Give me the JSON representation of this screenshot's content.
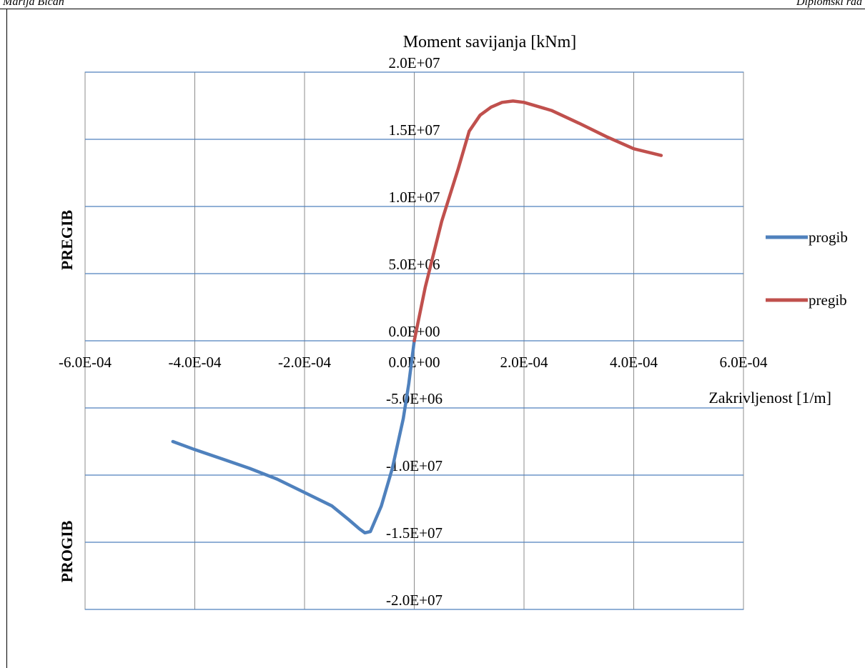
{
  "page": {
    "header_left": "Marija Bican",
    "header_right": "Diplomski rad"
  },
  "chart_data": {
    "type": "line",
    "title": "Moment savijanja [kNm]",
    "xlabel": "Zakrivljenost [1/m]",
    "ylabel_top": "PREGIB",
    "ylabel_bottom": "PROGIB",
    "xlim": [
      -0.0006,
      0.0006
    ],
    "ylim": [
      -20000000,
      20000000
    ],
    "x_ticks": [
      -0.0006,
      -0.0004,
      -0.0002,
      0,
      0.0002,
      0.0004,
      0.0006
    ],
    "x_tick_labels": [
      "-6.0E-04",
      "-4.0E-04",
      "-2.0E-04",
      "0.0E+00",
      "2.0E-04",
      "4.0E-04",
      "6.0E-04"
    ],
    "y_ticks": [
      20000000,
      15000000,
      10000000,
      5000000,
      0,
      -5000000,
      -10000000,
      -15000000,
      -20000000
    ],
    "y_tick_labels": [
      "2.0E+07",
      "1.5E+07",
      "1.0E+07",
      "5.0E+06",
      "0.0E+00",
      "-5.0E+06",
      "-1.0E+07",
      "-1.5E+07",
      "-2.0E+07"
    ],
    "grid": true,
    "legend_position": "right",
    "series": [
      {
        "name": "progib",
        "color": "#4f81bd",
        "points": [
          [
            0,
            0
          ],
          [
            -1e-05,
            -3200000
          ],
          [
            -2e-05,
            -5800000
          ],
          [
            -4e-05,
            -9500000
          ],
          [
            -6e-05,
            -12300000
          ],
          [
            -8e-05,
            -14200000
          ],
          [
            -9e-05,
            -14300000
          ],
          [
            -0.0001,
            -14000000
          ],
          [
            -0.00012,
            -13300000
          ],
          [
            -0.00015,
            -12300000
          ],
          [
            -0.0002,
            -11300000
          ],
          [
            -0.00025,
            -10300000
          ],
          [
            -0.0003,
            -9500000
          ],
          [
            -0.00035,
            -8800000
          ],
          [
            -0.0004,
            -8100000
          ],
          [
            -0.00044,
            -7500000
          ]
        ]
      },
      {
        "name": "pregib",
        "color": "#c0504d",
        "points": [
          [
            0,
            0
          ],
          [
            2e-05,
            4000000
          ],
          [
            5e-05,
            8900000
          ],
          [
            8e-05,
            12800000
          ],
          [
            0.0001,
            15600000
          ],
          [
            0.00012,
            16800000
          ],
          [
            0.00014,
            17400000
          ],
          [
            0.00016,
            17750000
          ],
          [
            0.00018,
            17850000
          ],
          [
            0.0002,
            17750000
          ],
          [
            0.00025,
            17150000
          ],
          [
            0.0003,
            16200000
          ],
          [
            0.00035,
            15200000
          ],
          [
            0.0004,
            14300000
          ],
          [
            0.00045,
            13800000
          ]
        ]
      }
    ]
  }
}
